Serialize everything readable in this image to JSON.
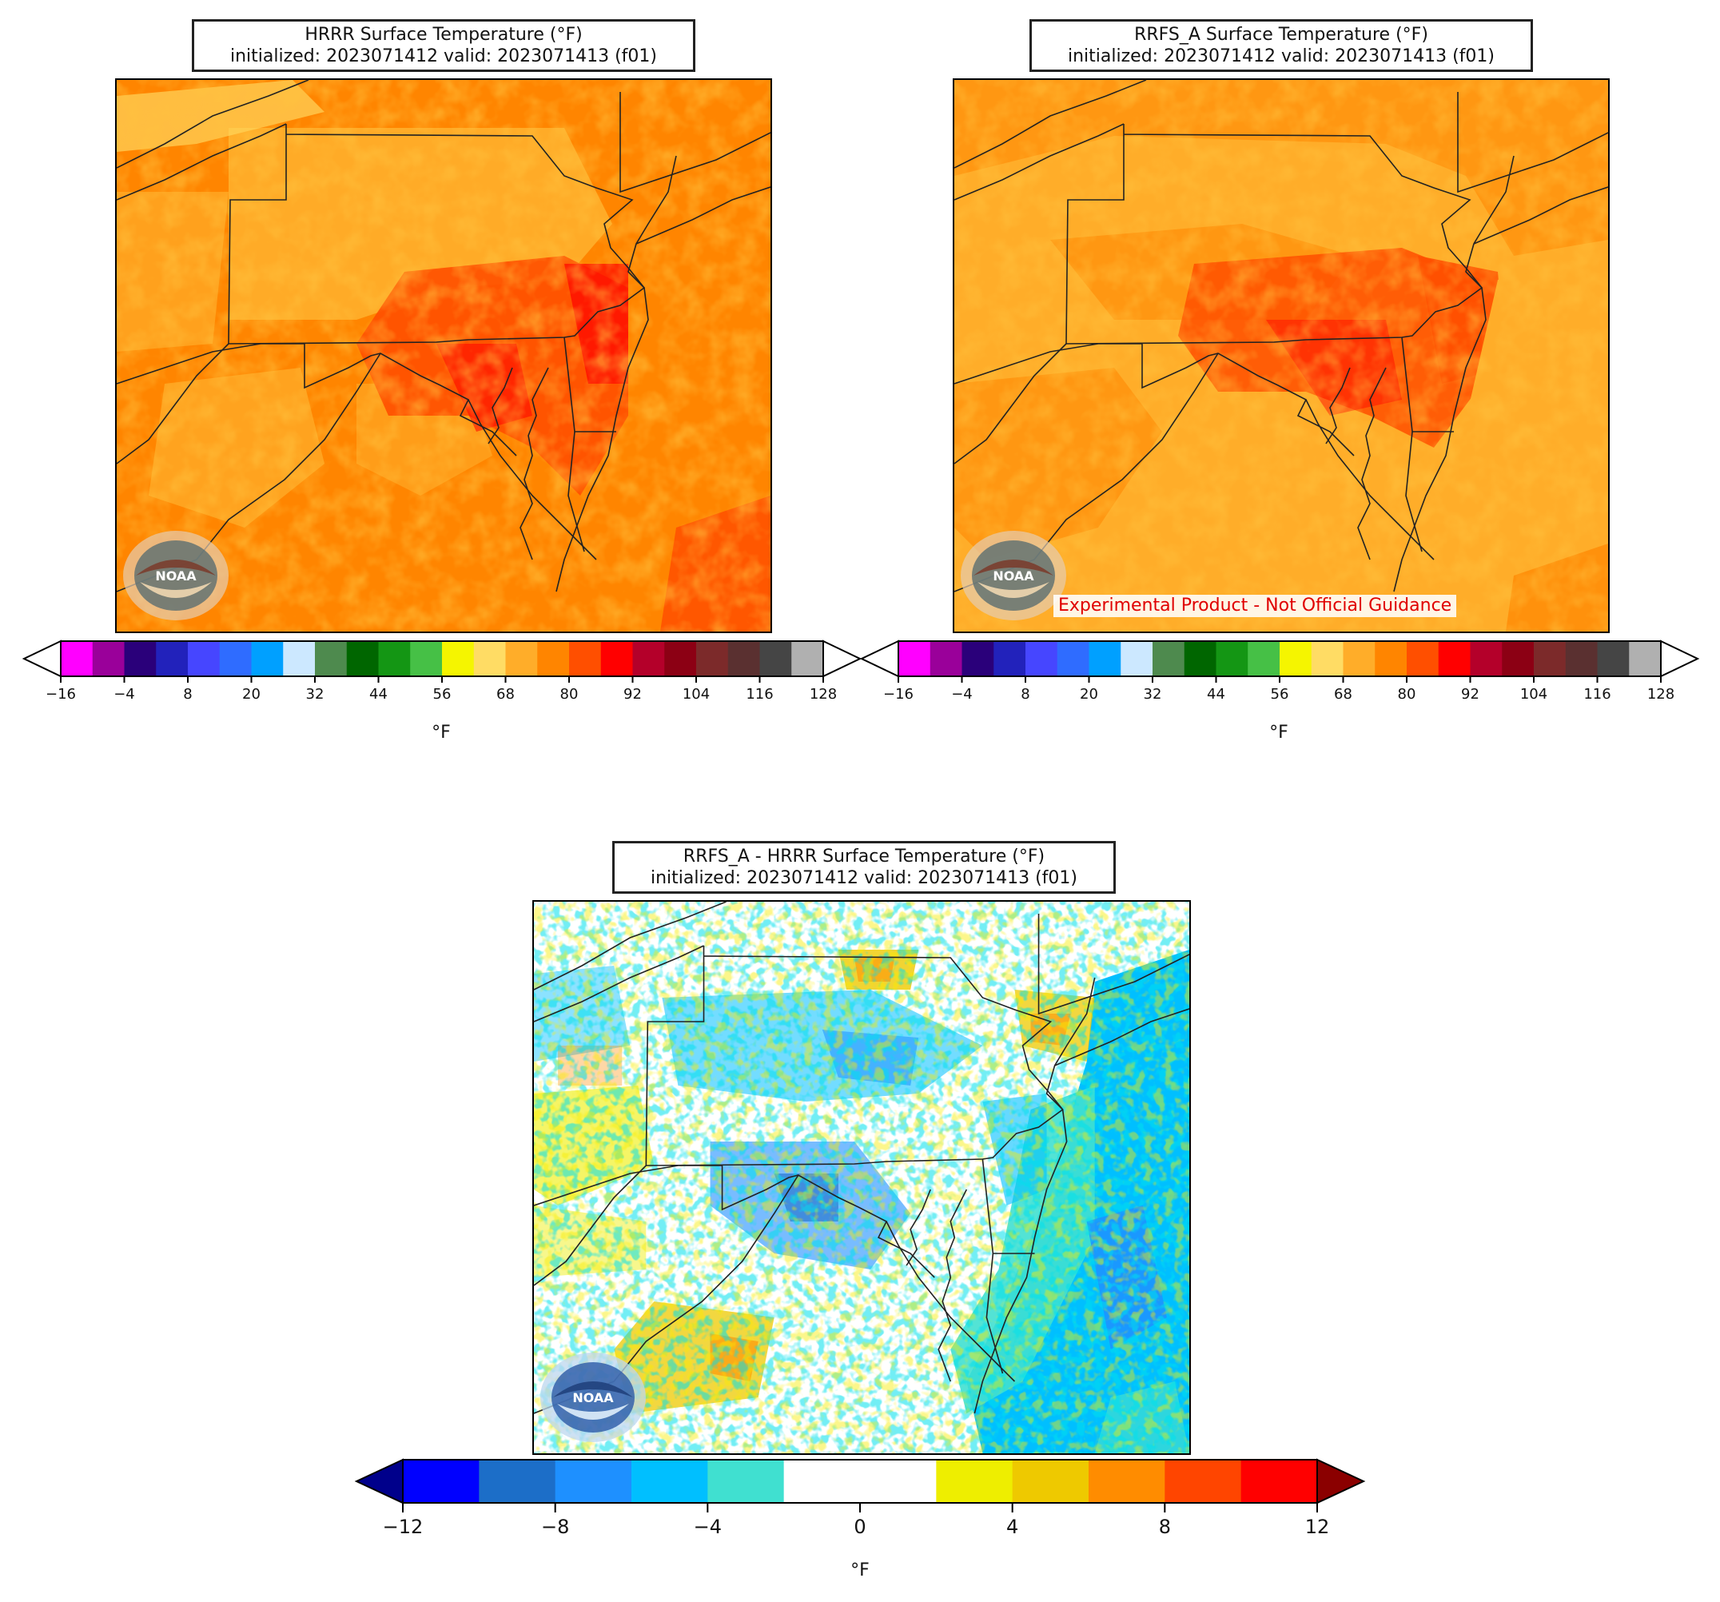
{
  "panels": {
    "hrrr": {
      "title": "HRRR Surface Temperature (°F)",
      "subtitle": "initialized: 2023071412 valid: 2023071413 (f01)"
    },
    "rrfs": {
      "title": "RRFS_A Surface Temperature (°F)",
      "subtitle": "initialized: 2023071412 valid: 2023071413 (f01)",
      "watermark": "Experimental Product - Not Official Guidance"
    },
    "diff": {
      "title": "RRFS_A - HRRR Surface Temperature (°F)",
      "subtitle": "initialized: 2023071412 valid: 2023071413 (f01)"
    }
  },
  "logo": {
    "icon": "noaa-logo-icon",
    "text": "NOAA"
  },
  "temp_colorbar": {
    "units": "°F",
    "extend": "both",
    "min": -16,
    "max": 128,
    "step": 6,
    "ticks": [
      "−16",
      "−4",
      "8",
      "20",
      "32",
      "44",
      "56",
      "68",
      "80",
      "92",
      "104",
      "116",
      "128"
    ],
    "colors": [
      "#ff00ff",
      "#9a009a",
      "#2a007a",
      "#2222bb",
      "#4646ff",
      "#2f6cff",
      "#00a0ff",
      "#cce8ff",
      "#4e8a4e",
      "#006600",
      "#149614",
      "#46c046",
      "#f5f500",
      "#ffdc64",
      "#ffad29",
      "#ff8500",
      "#ff4f00",
      "#ff0000",
      "#b4002a",
      "#8c0014",
      "#7c2a2a",
      "#5a3030",
      "#454545",
      "#b0b0b0"
    ],
    "under_color": "#ffffff",
    "over_color": "#ffffff"
  },
  "diff_colorbar": {
    "units": "°F",
    "extend": "both",
    "min": -12,
    "max": 12,
    "step": 2,
    "ticks": [
      "−12",
      "−8",
      "−4",
      "0",
      "4",
      "8",
      "12"
    ],
    "colors": [
      "#0000ff",
      "#1c6ec8",
      "#1e90ff",
      "#00bfff",
      "#40e0d0",
      "#ffffff",
      "#ffffff",
      "#eeee00",
      "#eec900",
      "#ff8c00",
      "#ff4500",
      "#ff0000"
    ],
    "under_color": "#00008b",
    "over_color": "#8b0000"
  },
  "chart_data": [
    {
      "type": "heatmap",
      "title": "HRRR Surface Temperature (°F)",
      "subtitle": "initialized: 2023071412 valid: 2023071413 (f01)",
      "colorbar_label": "°F",
      "colorbar_range": [
        -16,
        128
      ],
      "dominant_values": {
        "land": [
          68,
          86
        ],
        "urban_corridor": [
          86,
          92
        ],
        "ocean": [
          74,
          80
        ]
      }
    },
    {
      "type": "heatmap",
      "title": "RRFS_A Surface Temperature (°F)",
      "subtitle": "initialized: 2023071412 valid: 2023071413 (f01)",
      "colorbar_label": "°F",
      "colorbar_range": [
        -16,
        128
      ],
      "dominant_values": {
        "land": [
          68,
          86
        ],
        "urban_corridor": [
          86,
          92
        ],
        "ocean": [
          68,
          74
        ]
      }
    },
    {
      "type": "heatmap",
      "title": "RRFS_A - HRRR Surface Temperature (°F)",
      "subtitle": "initialized: 2023071412 valid: 2023071413 (f01)",
      "colorbar_label": "°F",
      "colorbar_range": [
        -12,
        12
      ],
      "dominant_values": {
        "land": [
          -6,
          6
        ],
        "ocean": [
          -8,
          -4
        ]
      }
    }
  ]
}
